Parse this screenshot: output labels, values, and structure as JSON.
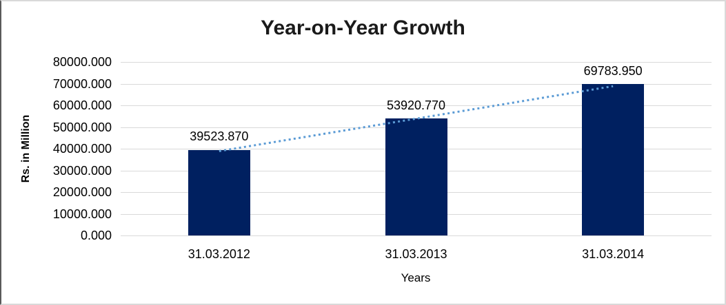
{
  "chart_data": {
    "type": "bar",
    "title": "Year-on-Year Growth",
    "categories": [
      "31.03.2012",
      "31.03.2013",
      "31.03.2014"
    ],
    "values": [
      39523.87,
      53920.77,
      69783.95
    ],
    "value_labels": [
      "39523.870",
      "53920.770",
      "69783.950"
    ],
    "xlabel": "Years",
    "ylabel": "Rs. in Million",
    "ylim": [
      0,
      80000
    ],
    "ytick_step": 10000,
    "ytick_labels": [
      "80000.000",
      "70000.000",
      "60000.000",
      "50000.000",
      "40000.000",
      "30000.000",
      "20000.000",
      "10000.000",
      "0.000"
    ],
    "grid": true,
    "legend": "none",
    "trendline": {
      "type": "linear",
      "style": "dotted",
      "spans": [
        "31.03.2012",
        "31.03.2014"
      ]
    },
    "colors": {
      "bar": "#002060",
      "trendline": "#5b9bd5",
      "gridline": "#d9d9d9",
      "title_text": "#1a1a1a",
      "label_text": "#000000"
    }
  }
}
